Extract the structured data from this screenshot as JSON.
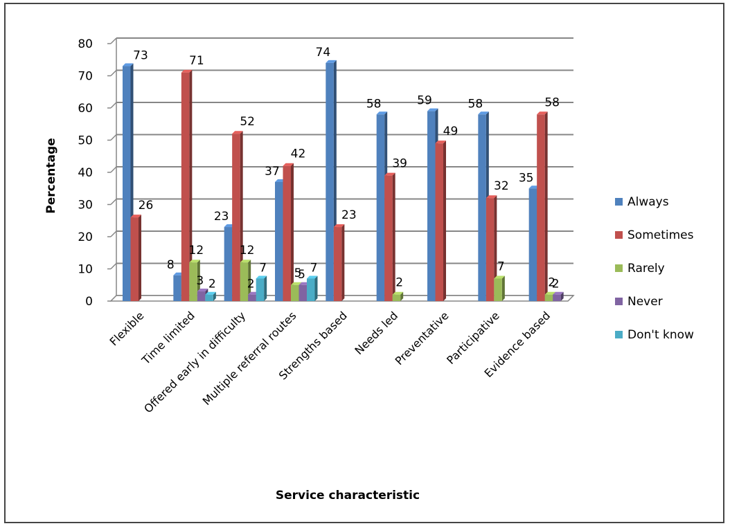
{
  "chart_data": {
    "type": "bar",
    "title": "",
    "xlabel": "Service characteristic",
    "ylabel": "Percentage",
    "ylim": [
      0,
      80
    ],
    "yticks": [
      0,
      10,
      20,
      30,
      40,
      50,
      60,
      70,
      80
    ],
    "categories": [
      "Flexible",
      "Time limited",
      "Offered early in difficulty",
      "Multiple referral routes",
      "Strengths based",
      "Needs led",
      "Preventative",
      "Participative",
      "Evidence based"
    ],
    "series": [
      {
        "name": "Always",
        "color": "#4F81BD",
        "values": [
          73,
          8,
          23,
          37,
          74,
          58,
          59,
          58,
          35
        ]
      },
      {
        "name": "Sometimes",
        "color": "#C0504D",
        "values": [
          26,
          71,
          52,
          42,
          23,
          39,
          49,
          32,
          58
        ]
      },
      {
        "name": "Rarely",
        "color": "#9BBB59",
        "values": [
          0,
          12,
          12,
          5,
          0,
          2,
          0,
          7,
          2
        ]
      },
      {
        "name": "Never",
        "color": "#8064A2",
        "values": [
          0,
          3,
          2,
          5,
          0,
          0,
          0,
          0,
          2
        ]
      },
      {
        "name": "Don't know",
        "color": "#4BACC6",
        "values": [
          0,
          2,
          7,
          7,
          0,
          0,
          0,
          0,
          0
        ]
      }
    ],
    "data_labels": [
      [
        "73",
        "8",
        "23",
        "37",
        "74",
        "58",
        "59",
        "58",
        "35"
      ],
      [
        "26",
        "71",
        "52",
        "42",
        "23",
        "39",
        "49",
        "32",
        "58"
      ],
      [
        "",
        "12",
        "12",
        "5",
        "",
        "2",
        "",
        "7",
        "2"
      ],
      [
        "",
        "3",
        "2",
        "5",
        "",
        "",
        "",
        "",
        "2"
      ],
      [
        "",
        "2",
        "7",
        "7",
        "",
        "",
        "",
        "",
        ""
      ]
    ],
    "grid": true,
    "legend": "right"
  }
}
